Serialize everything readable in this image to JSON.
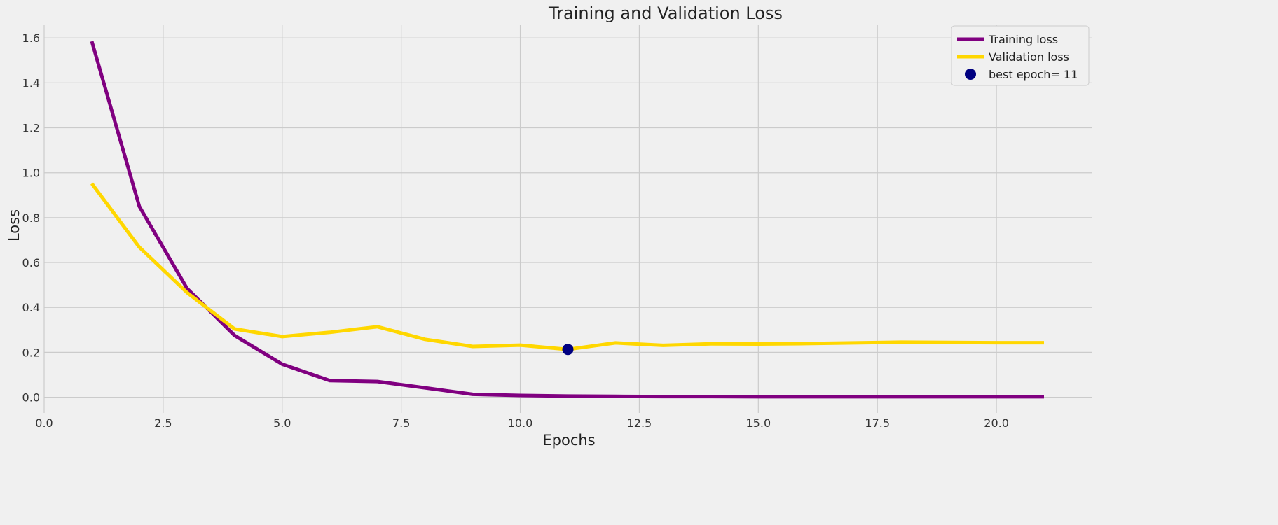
{
  "chart_data": {
    "type": "line",
    "title": "Training and Validation Loss",
    "xlabel": "Epochs",
    "ylabel": "Loss",
    "xlim": [
      0,
      22
    ],
    "ylim": [
      -0.07,
      1.66
    ],
    "xticks": [
      0.0,
      2.5,
      5.0,
      7.5,
      10.0,
      12.5,
      15.0,
      17.5,
      20.0
    ],
    "xtick_labels": [
      "0.0",
      "2.5",
      "5.0",
      "7.5",
      "10.0",
      "12.5",
      "15.0",
      "17.5",
      "20.0"
    ],
    "yticks": [
      0.0,
      0.2,
      0.4,
      0.6,
      0.8,
      1.0,
      1.2,
      1.4,
      1.6
    ],
    "ytick_labels": [
      "0.0",
      "0.2",
      "0.4",
      "0.6",
      "0.8",
      "1.0",
      "1.2",
      "1.4",
      "1.6"
    ],
    "grid": true,
    "legend_position": "top-right",
    "x": [
      1,
      2,
      3,
      4,
      5,
      6,
      7,
      8,
      9,
      10,
      11,
      12,
      13,
      14,
      15,
      16,
      17,
      18,
      19,
      20,
      21
    ],
    "series": [
      {
        "name": "Training loss",
        "color": "#800080",
        "values": [
          1.585,
          0.85,
          0.485,
          0.275,
          0.147,
          0.074,
          0.07,
          0.042,
          0.013,
          0.008,
          0.005,
          0.004,
          0.003,
          0.003,
          0.002,
          0.002,
          0.002,
          0.002,
          0.002,
          0.002,
          0.002
        ]
      },
      {
        "name": "Validation loss",
        "color": "#ffd700",
        "values": [
          0.952,
          0.668,
          0.466,
          0.304,
          0.27,
          0.289,
          0.314,
          0.258,
          0.226,
          0.232,
          0.213,
          0.242,
          0.231,
          0.238,
          0.237,
          0.239,
          0.242,
          0.245,
          0.244,
          0.243,
          0.243
        ]
      }
    ],
    "best_point": {
      "label": "best epoch= 11",
      "x": 11,
      "y": 0.213,
      "color": "#000080"
    }
  }
}
